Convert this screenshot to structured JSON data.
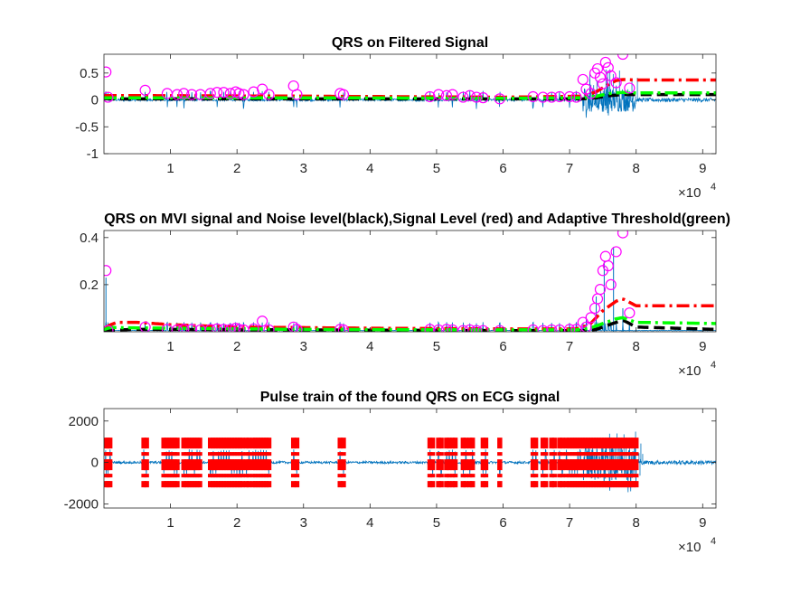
{
  "chart_data": [
    {
      "type": "line",
      "title": "QRS on Filtered Signal",
      "xlim": [
        0,
        92000
      ],
      "ylim": [
        -1,
        0.85
      ],
      "xticks": [
        10000,
        20000,
        30000,
        40000,
        50000,
        60000,
        70000,
        80000,
        90000
      ],
      "xtick_labels": [
        "1",
        "2",
        "3",
        "4",
        "5",
        "6",
        "7",
        "8",
        "9"
      ],
      "x_multiplier": {
        "base": "×10",
        "exponent": "4"
      },
      "yticks": [
        -1,
        -0.5,
        0,
        0.5
      ],
      "ytick_labels": [
        "-1",
        "-0.5",
        "0",
        "0.5"
      ],
      "series": [
        {
          "role": "filtered-signal",
          "color": "#0072BD",
          "style": "solid"
        },
        {
          "role": "noise-level",
          "color": "#000000",
          "style": "dashed",
          "x": [
            0,
            5000,
            30000,
            60000,
            72000,
            74000,
            76000,
            78000,
            80000,
            92000
          ],
          "y": [
            0.02,
            0.02,
            0.02,
            0.02,
            0.02,
            0.04,
            0.08,
            0.1,
            0.1,
            0.1
          ]
        },
        {
          "role": "signal-level",
          "color": "#FF0000",
          "style": "dashdot",
          "x": [
            0,
            5000,
            30000,
            60000,
            72000,
            74000,
            76000,
            77000,
            78000,
            80000,
            92000
          ],
          "y": [
            0.08,
            0.08,
            0.07,
            0.05,
            0.07,
            0.15,
            0.3,
            0.36,
            0.38,
            0.37,
            0.37
          ]
        },
        {
          "role": "adaptive-threshold",
          "color": "#00FF00",
          "style": "dashdot",
          "x": [
            0,
            5000,
            30000,
            60000,
            72000,
            74000,
            76000,
            78000,
            80000,
            92000
          ],
          "y": [
            0.04,
            0.04,
            0.04,
            0.03,
            0.04,
            0.07,
            0.12,
            0.14,
            0.13,
            0.13
          ]
        },
        {
          "role": "qrs-peaks",
          "color": "#FF00FF",
          "marker": "circle",
          "x": [
            300,
            600,
            6200,
            9500,
            11000,
            12000,
            13200,
            14500,
            16000,
            17000,
            18000,
            19000,
            19800,
            20300,
            21000,
            22500,
            23800,
            24800,
            28500,
            29000,
            35500,
            36000,
            49000,
            50300,
            51500,
            52400,
            54000,
            55000,
            56000,
            57000,
            59500,
            64500,
            66000,
            67300,
            68500,
            70000,
            71000,
            72000,
            72500,
            73200,
            73800,
            74200,
            74600,
            75000,
            75400,
            75800,
            76200,
            77000,
            78000,
            79000
          ],
          "y": [
            0.52,
            0.05,
            0.18,
            0.12,
            0.1,
            0.12,
            0.1,
            0.1,
            0.12,
            0.14,
            0.14,
            0.12,
            0.15,
            0.12,
            0.1,
            0.15,
            0.2,
            0.1,
            0.26,
            0.1,
            0.12,
            0.1,
            0.06,
            0.1,
            0.08,
            0.1,
            0.05,
            0.08,
            0.05,
            0.04,
            0.02,
            0.06,
            0.05,
            0.05,
            0.06,
            0.06,
            0.05,
            0.38,
            0.2,
            0.12,
            0.5,
            0.58,
            0.42,
            0.3,
            0.7,
            0.6,
            0.45,
            0.32,
            0.85,
            0.22
          ]
        }
      ]
    },
    {
      "type": "line",
      "title": "QRS on MVI signal and Noise level(black),Signal Level (red) and Adaptive Threshold(green)",
      "xlim": [
        0,
        92000
      ],
      "ylim": [
        0,
        0.43
      ],
      "xticks": [
        10000,
        20000,
        30000,
        40000,
        50000,
        60000,
        70000,
        80000,
        90000
      ],
      "xtick_labels": [
        "1",
        "2",
        "3",
        "4",
        "5",
        "6",
        "7",
        "8",
        "9"
      ],
      "x_multiplier": {
        "base": "×10",
        "exponent": "4"
      },
      "yticks": [
        0.2,
        0.4
      ],
      "ytick_labels": [
        "0.2",
        "0.4"
      ],
      "series": [
        {
          "role": "mvi-signal",
          "color": "#0072BD",
          "style": "solid"
        },
        {
          "role": "noise-level",
          "color": "#000000",
          "style": "dashed",
          "x": [
            0,
            1000,
            4000,
            10000,
            30000,
            60000,
            72000,
            74000,
            76000,
            78000,
            80000,
            92000
          ],
          "y": [
            0.005,
            0.005,
            0.01,
            0.01,
            0.008,
            0.005,
            0.005,
            0.01,
            0.03,
            0.05,
            0.02,
            0.01
          ]
        },
        {
          "role": "signal-level",
          "color": "#FF0000",
          "style": "dashdot",
          "x": [
            0,
            1000,
            2000,
            5000,
            10000,
            20000,
            40000,
            60000,
            71000,
            73000,
            75000,
            77000,
            78000,
            80000,
            92000
          ],
          "y": [
            0.015,
            0.03,
            0.04,
            0.04,
            0.03,
            0.02,
            0.015,
            0.012,
            0.012,
            0.03,
            0.09,
            0.13,
            0.14,
            0.11,
            0.11
          ]
        },
        {
          "role": "adaptive-threshold",
          "color": "#00FF00",
          "style": "dashdot",
          "x": [
            0,
            1000,
            10000,
            30000,
            60000,
            71000,
            73000,
            75000,
            77000,
            78000,
            80000,
            92000
          ],
          "y": [
            0.01,
            0.018,
            0.015,
            0.01,
            0.008,
            0.008,
            0.015,
            0.035,
            0.055,
            0.06,
            0.04,
            0.035
          ]
        },
        {
          "role": "qrs-peaks",
          "color": "#FF00FF",
          "marker": "circle",
          "x": [
            300,
            600,
            6200,
            9500,
            11000,
            12000,
            13200,
            14500,
            16000,
            17000,
            18000,
            19000,
            19800,
            20300,
            21000,
            22500,
            23800,
            24800,
            28500,
            29000,
            35500,
            36000,
            49000,
            50300,
            51500,
            52400,
            54000,
            55000,
            56000,
            57000,
            59500,
            64500,
            66000,
            67300,
            68500,
            70000,
            71000,
            72000,
            72500,
            73200,
            73800,
            74200,
            74600,
            75000,
            75400,
            75800,
            76200,
            77000,
            78000,
            79000
          ],
          "y": [
            0.26,
            0.005,
            0.02,
            0.01,
            0.008,
            0.01,
            0.01,
            0.008,
            0.01,
            0.012,
            0.01,
            0.01,
            0.015,
            0.01,
            0.008,
            0.012,
            0.045,
            0.008,
            0.02,
            0.01,
            0.01,
            0.008,
            0.01,
            0.008,
            0.01,
            0.008,
            0.005,
            0.008,
            0.005,
            0.005,
            0.005,
            0.008,
            0.005,
            0.008,
            0.008,
            0.01,
            0.01,
            0.04,
            0.02,
            0.06,
            0.1,
            0.14,
            0.18,
            0.26,
            0.32,
            0.28,
            0.2,
            0.34,
            0.42,
            0.08
          ]
        }
      ]
    },
    {
      "type": "line",
      "title": "Pulse train of the found QRS on ECG signal",
      "xlim": [
        0,
        92000
      ],
      "ylim": [
        -2200,
        2600
      ],
      "xticks": [
        10000,
        20000,
        30000,
        40000,
        50000,
        60000,
        70000,
        80000,
        90000
      ],
      "xtick_labels": [
        "1",
        "2",
        "3",
        "4",
        "5",
        "6",
        "7",
        "8",
        "9"
      ],
      "x_multiplier": {
        "base": "×10",
        "exponent": "4"
      },
      "yticks": [
        -2000,
        0,
        2000
      ],
      "ytick_labels": [
        "-2000",
        "0",
        "2000"
      ],
      "series": [
        {
          "role": "ecg-signal",
          "color": "#0072BD",
          "style": "solid"
        },
        {
          "role": "qrs-pulse-train",
          "color": "#FF0000",
          "style": "dashdot",
          "amplitude": 1200,
          "x": [
            300,
            600,
            900,
            6000,
            6400,
            9000,
            9400,
            9800,
            10200,
            10600,
            11000,
            12000,
            12400,
            12800,
            13200,
            13600,
            14000,
            14400,
            16000,
            16400,
            16800,
            17200,
            17600,
            18000,
            18400,
            18800,
            19200,
            19600,
            20000,
            20400,
            20800,
            21400,
            21800,
            22400,
            22800,
            23200,
            23600,
            24000,
            24400,
            24800,
            28500,
            29000,
            35500,
            36000,
            49000,
            49400,
            50300,
            50700,
            51500,
            51900,
            52400,
            52800,
            54000,
            54400,
            55000,
            55400,
            57000,
            57400,
            59500,
            64500,
            64900,
            66000,
            66400,
            67300,
            67700,
            68500,
            68900,
            69500,
            70000,
            70400,
            70800,
            71200,
            71600,
            72000,
            72400,
            72800,
            73200,
            73600,
            74000,
            74400,
            74800,
            75200,
            75600,
            76000,
            76400,
            76800,
            77200,
            77600,
            78000,
            78400,
            78800,
            79200,
            79600,
            80000
          ]
        }
      ]
    }
  ]
}
